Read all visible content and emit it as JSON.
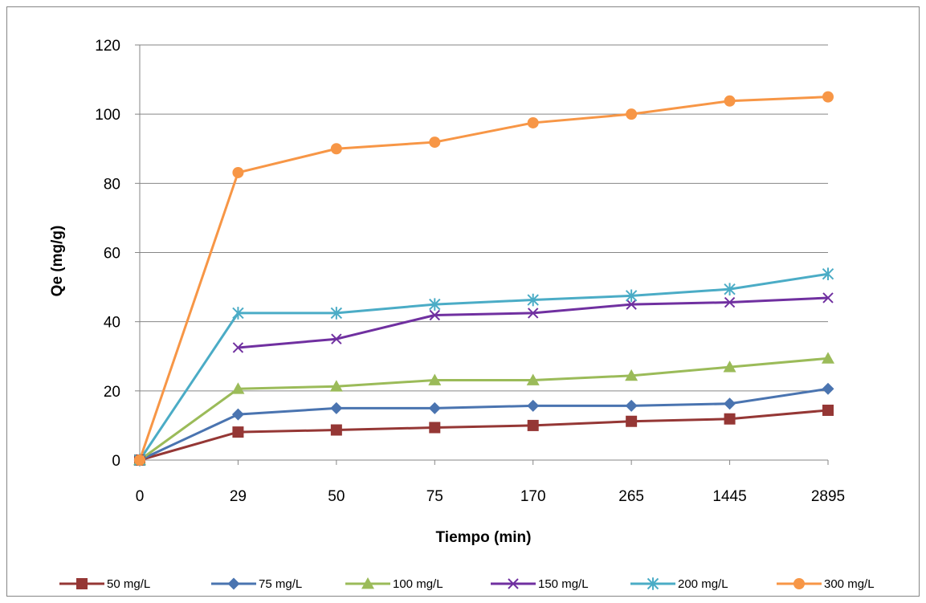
{
  "chart_data": {
    "type": "line",
    "title": "",
    "xlabel": "Tiempo (min)",
    "ylabel": "Qe (mg/g)",
    "categories": [
      "0",
      "29",
      "50",
      "75",
      "170",
      "265",
      "1445",
      "2895"
    ],
    "ylim": [
      0,
      120
    ],
    "yticks": [
      0,
      20,
      40,
      60,
      80,
      100,
      120
    ],
    "grid": "horizontal",
    "legend_position": "bottom",
    "series": [
      {
        "name": "50 mg/L",
        "color": "#953735",
        "marker": "square",
        "values": [
          0,
          8.1,
          8.7,
          9.4,
          10.0,
          11.2,
          11.9,
          14.4
        ]
      },
      {
        "name": "75 mg/L",
        "color": "#4a74b0",
        "marker": "diamond",
        "values": [
          0,
          13.2,
          15.0,
          15.0,
          15.7,
          15.7,
          16.3,
          20.6
        ]
      },
      {
        "name": "100 mg/L",
        "color": "#9bbb59",
        "marker": "triangle",
        "values": [
          0,
          20.6,
          21.3,
          23.1,
          23.1,
          24.4,
          26.9,
          29.4
        ]
      },
      {
        "name": "150 mg/L",
        "color": "#7030a0",
        "marker": "x",
        "values": [
          null,
          32.5,
          35.0,
          41.9,
          42.5,
          45.0,
          45.6,
          46.9
        ]
      },
      {
        "name": "200 mg/L",
        "color": "#4bacc6",
        "marker": "star",
        "values": [
          0,
          42.5,
          42.5,
          45.0,
          46.3,
          47.5,
          49.4,
          53.8
        ]
      },
      {
        "name": "300 mg/L",
        "color": "#f79646",
        "marker": "circle",
        "values": [
          0,
          83.1,
          90.0,
          91.9,
          97.5,
          100.0,
          103.8,
          105.0
        ]
      }
    ]
  }
}
